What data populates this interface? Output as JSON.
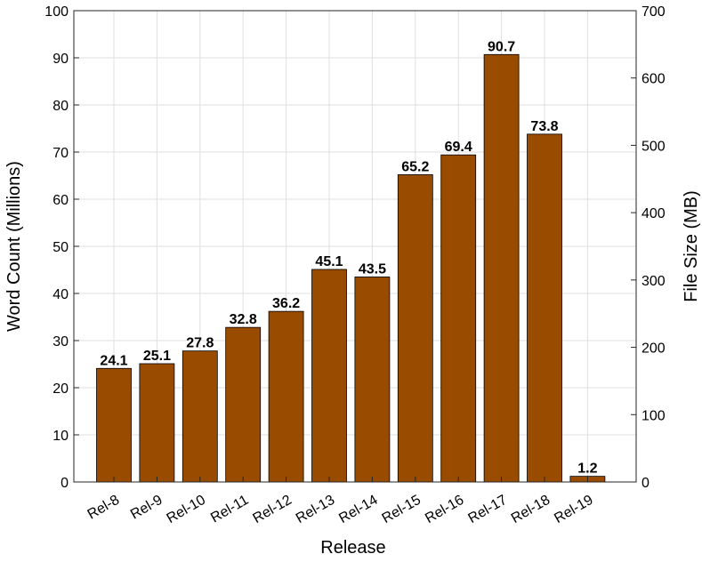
{
  "chart_data": {
    "type": "bar",
    "title": "",
    "xlabel": "Release",
    "ylabel": "Word Count (Millions)",
    "y2label": "File Size (MB)",
    "categories": [
      "Rel-8",
      "Rel-9",
      "Rel-10",
      "Rel-11",
      "Rel-12",
      "Rel-13",
      "Rel-14",
      "Rel-15",
      "Rel-16",
      "Rel-17",
      "Rel-18",
      "Rel-19"
    ],
    "values": [
      24.1,
      25.1,
      27.8,
      32.8,
      36.2,
      45.1,
      43.5,
      65.2,
      69.4,
      90.7,
      73.8,
      1.2
    ],
    "data_labels": [
      "24.1",
      "25.1",
      "27.8",
      "32.8",
      "36.2",
      "45.1",
      "43.5",
      "65.2",
      "69.4",
      "90.7",
      "73.8",
      "1.2"
    ],
    "ylim": [
      0,
      100
    ],
    "y2lim": [
      0,
      700
    ],
    "yticks": [
      "0",
      "10",
      "20",
      "30",
      "40",
      "50",
      "60",
      "70",
      "80",
      "90",
      "100"
    ],
    "y2ticks": [
      "0",
      "100",
      "200",
      "300",
      "400",
      "500",
      "600",
      "700"
    ],
    "grid": true,
    "bar_color": "#994c00",
    "bar_edge_color": "#000000"
  }
}
